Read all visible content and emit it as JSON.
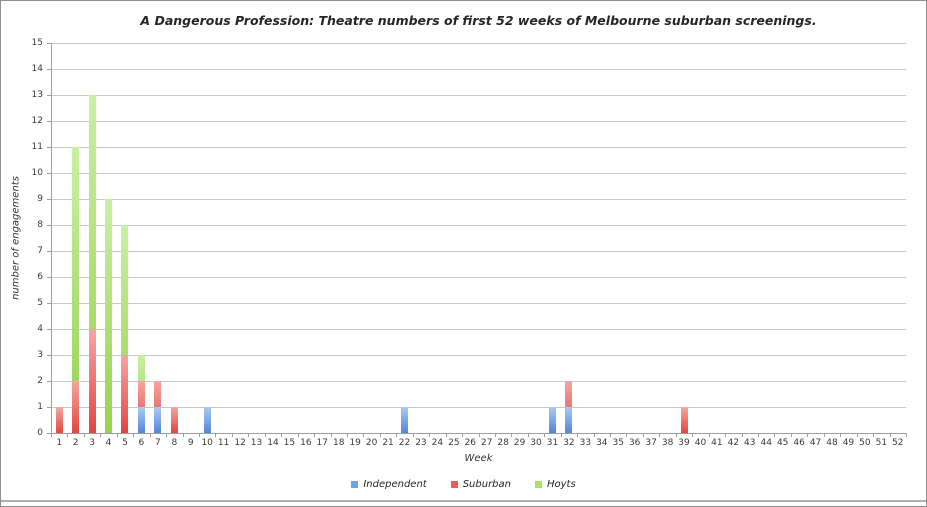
{
  "chart": {
    "title": "A Dangerous Profession: Theatre numbers of first 52 weeks of Melbourne suburban screenings.",
    "y_axis_title": "number of engagements",
    "x_axis_title": "Week"
  },
  "chart_data": {
    "type": "bar",
    "title": "A Dangerous Profession: Theatre numbers of first 52 weeks of Melbourne suburban screenings.",
    "xlabel": "Week",
    "ylabel": "number of engagements",
    "ylim": [
      0,
      15
    ],
    "ytick_step": 1,
    "grid": true,
    "legend_position": "bottom",
    "bar_style": "overlapped-same-x, draw order Hoyts(back), Suburban, Independent(front)",
    "categories": [
      "1",
      "2",
      "3",
      "4",
      "5",
      "6",
      "7",
      "8",
      "9",
      "10",
      "11",
      "12",
      "13",
      "14",
      "15",
      "16",
      "17",
      "18",
      "19",
      "20",
      "21",
      "22",
      "23",
      "24",
      "25",
      "26",
      "27",
      "28",
      "29",
      "30",
      "31",
      "32",
      "33",
      "34",
      "35",
      "36",
      "37",
      "38",
      "39",
      "40",
      "41",
      "42",
      "43",
      "44",
      "45",
      "46",
      "47",
      "48",
      "49",
      "50",
      "51",
      "52"
    ],
    "series": [
      {
        "name": "Independent",
        "color": "#6fa0ea",
        "color_light": "#abcbf2",
        "color_dark": "#5284da",
        "values": [
          0,
          0,
          0,
          0,
          0,
          1,
          1,
          0,
          0,
          1,
          0,
          0,
          0,
          0,
          0,
          0,
          0,
          0,
          0,
          0,
          0,
          1,
          0,
          0,
          0,
          0,
          0,
          0,
          0,
          0,
          1,
          1,
          0,
          0,
          0,
          0,
          0,
          0,
          0,
          0,
          0,
          0,
          0,
          0,
          0,
          0,
          0,
          0,
          0,
          0,
          0,
          0
        ]
      },
      {
        "name": "Suburban",
        "color": "#ee5a54",
        "color_light": "#f3a7a3",
        "color_dark": "#e2453f",
        "values": [
          1,
          2,
          4,
          0,
          3,
          2,
          2,
          1,
          0,
          0,
          0,
          0,
          0,
          0,
          0,
          0,
          0,
          0,
          0,
          0,
          0,
          0,
          0,
          0,
          0,
          0,
          0,
          0,
          0,
          0,
          0,
          2,
          0,
          0,
          0,
          0,
          0,
          0,
          1,
          0,
          0,
          0,
          0,
          0,
          0,
          0,
          0,
          0,
          0,
          0,
          0,
          0
        ]
      },
      {
        "name": "Hoyts",
        "color": "#a9e26a",
        "color_light": "#c9f0a3",
        "color_dark": "#98d14f",
        "values": [
          0,
          11,
          13,
          9,
          8,
          3,
          0,
          0,
          0,
          0,
          0,
          0,
          0,
          0,
          0,
          0,
          0,
          0,
          0,
          0,
          0,
          0,
          0,
          0,
          0,
          0,
          0,
          0,
          0,
          0,
          0,
          0,
          0,
          0,
          0,
          0,
          0,
          0,
          0,
          0,
          0,
          0,
          0,
          0,
          0,
          0,
          0,
          0,
          0,
          0,
          0,
          0
        ]
      }
    ]
  }
}
